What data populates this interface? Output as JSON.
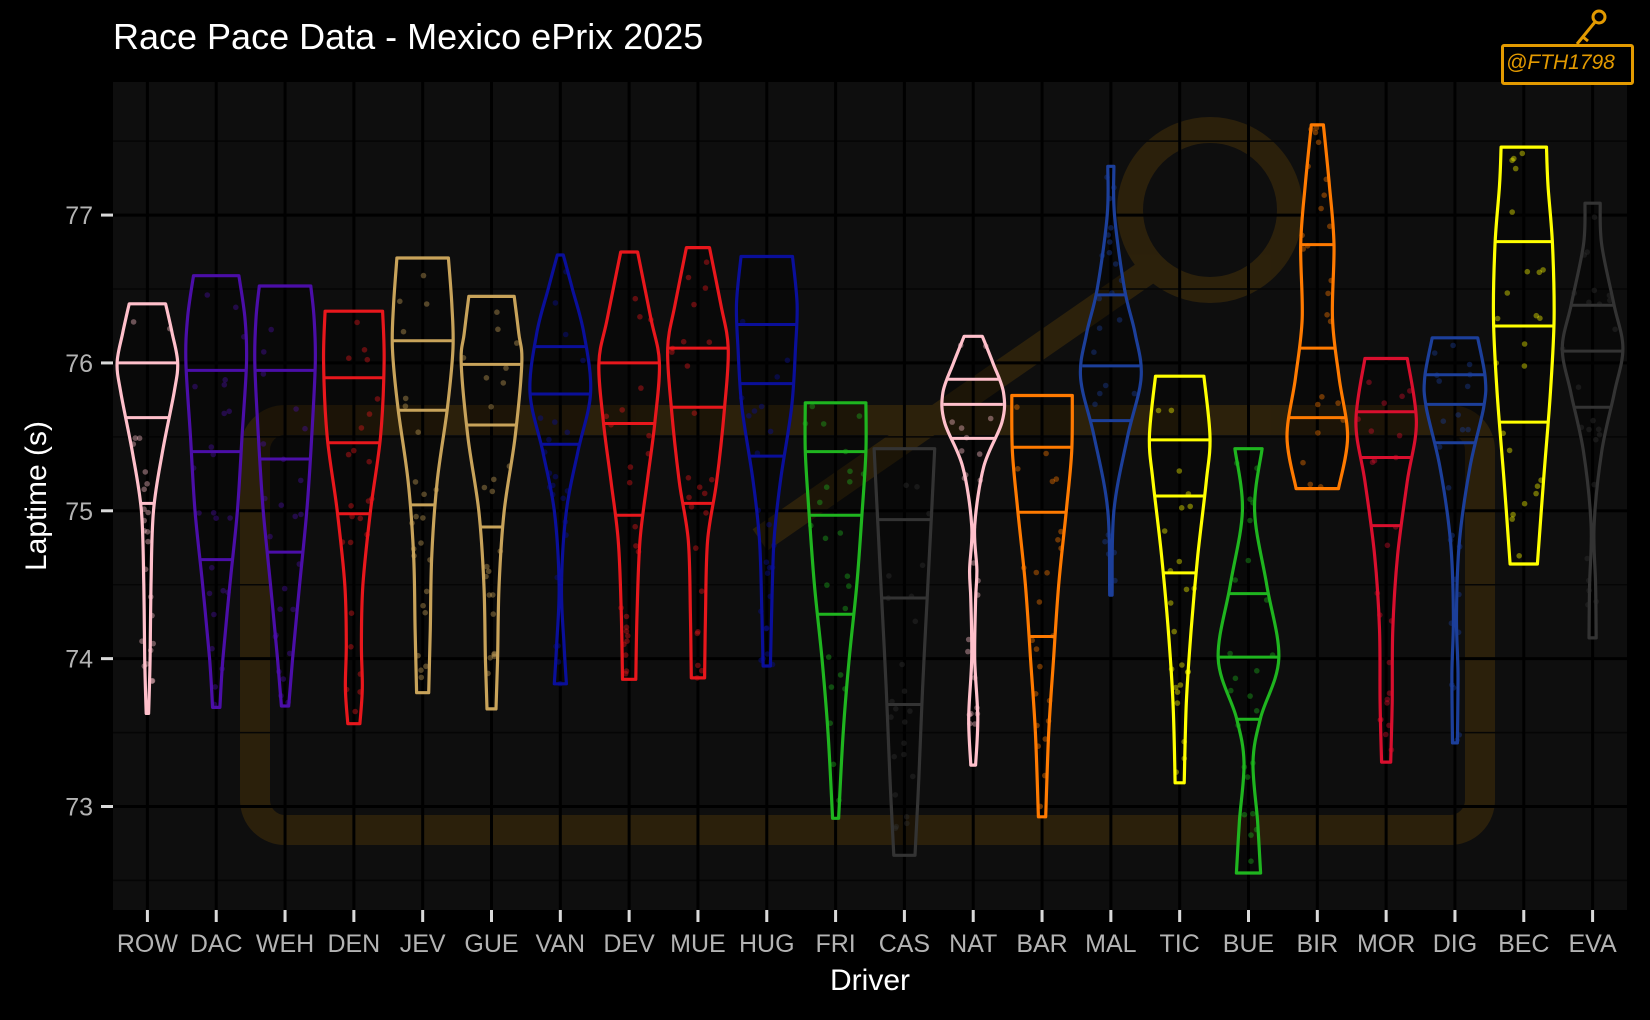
{
  "title": "Race Pace Data - Mexico ePrix 2025",
  "watermark": "@FTH1798",
  "chart_data": {
    "type": "violin",
    "title": "Race Pace Data - Mexico ePrix 2025",
    "xlabel": "Driver",
    "ylabel": "Laptime (s)",
    "ylim": [
      72.3,
      77.9
    ],
    "yticks": [
      73,
      74,
      75,
      76,
      77
    ],
    "grid": true,
    "legend": "none",
    "drivers": [
      {
        "name": "ROW",
        "color": "#ffc0cb",
        "min": 73.63,
        "max": 76.4,
        "q1": 75.05,
        "median": 75.63,
        "q3": 76.0,
        "shape": [
          [
            73.63,
            0.04
          ],
          [
            74.0,
            0.09
          ],
          [
            74.5,
            0.12
          ],
          [
            75.0,
            0.2
          ],
          [
            75.4,
            0.5
          ],
          [
            75.8,
            0.88
          ],
          [
            76.0,
            1.0
          ],
          [
            76.2,
            0.82
          ],
          [
            76.4,
            0.6
          ]
        ]
      },
      {
        "name": "DAC",
        "color": "#4b0ea8",
        "min": 73.67,
        "max": 76.59,
        "q1": 74.67,
        "median": 75.4,
        "q3": 75.95,
        "shape": [
          [
            73.67,
            0.12
          ],
          [
            74.0,
            0.22
          ],
          [
            74.5,
            0.45
          ],
          [
            75.0,
            0.7
          ],
          [
            75.5,
            0.85
          ],
          [
            76.0,
            1.0
          ],
          [
            76.3,
            0.95
          ],
          [
            76.59,
            0.75
          ]
        ]
      },
      {
        "name": "WEH",
        "color": "#4b0ea8",
        "min": 73.68,
        "max": 76.52,
        "q1": 74.72,
        "median": 75.35,
        "q3": 75.95,
        "shape": [
          [
            73.68,
            0.12
          ],
          [
            74.0,
            0.25
          ],
          [
            74.5,
            0.48
          ],
          [
            75.0,
            0.72
          ],
          [
            75.5,
            0.88
          ],
          [
            76.0,
            1.0
          ],
          [
            76.3,
            0.96
          ],
          [
            76.52,
            0.85
          ]
        ]
      },
      {
        "name": "DEN",
        "color": "#e8171c",
        "min": 73.56,
        "max": 76.35,
        "q1": 74.98,
        "median": 75.46,
        "q3": 75.9,
        "shape": [
          [
            73.56,
            0.2
          ],
          [
            73.8,
            0.28
          ],
          [
            74.1,
            0.25
          ],
          [
            74.5,
            0.3
          ],
          [
            75.0,
            0.55
          ],
          [
            75.5,
            0.88
          ],
          [
            76.0,
            1.0
          ],
          [
            76.35,
            0.95
          ]
        ]
      },
      {
        "name": "JEV",
        "color": "#c8a35a",
        "min": 73.77,
        "max": 76.71,
        "q1": 75.04,
        "median": 75.68,
        "q3": 76.15,
        "shape": [
          [
            73.77,
            0.2
          ],
          [
            74.2,
            0.25
          ],
          [
            74.7,
            0.3
          ],
          [
            75.2,
            0.48
          ],
          [
            75.7,
            0.82
          ],
          [
            76.1,
            1.0
          ],
          [
            76.4,
            0.96
          ],
          [
            76.71,
            0.85
          ]
        ]
      },
      {
        "name": "GUE",
        "color": "#c8a35a",
        "min": 73.66,
        "max": 76.45,
        "q1": 74.89,
        "median": 75.58,
        "q3": 75.99,
        "shape": [
          [
            73.66,
            0.15
          ],
          [
            74.0,
            0.2
          ],
          [
            74.5,
            0.25
          ],
          [
            75.0,
            0.42
          ],
          [
            75.5,
            0.78
          ],
          [
            76.0,
            1.0
          ],
          [
            76.2,
            0.9
          ],
          [
            76.45,
            0.75
          ]
        ]
      },
      {
        "name": "VAN",
        "color": "#0a0f9a",
        "min": 73.83,
        "max": 76.73,
        "q1": 75.45,
        "median": 75.79,
        "q3": 76.11,
        "shape": [
          [
            73.83,
            0.2
          ],
          [
            74.1,
            0.12
          ],
          [
            74.5,
            0.04
          ],
          [
            75.0,
            0.2
          ],
          [
            75.4,
            0.58
          ],
          [
            75.8,
            1.0
          ],
          [
            76.2,
            0.78
          ],
          [
            76.5,
            0.4
          ],
          [
            76.73,
            0.1
          ]
        ]
      },
      {
        "name": "DEV",
        "color": "#e8171c",
        "min": 73.86,
        "max": 76.75,
        "q1": 74.97,
        "median": 75.59,
        "q3": 76.0,
        "shape": [
          [
            73.86,
            0.22
          ],
          [
            74.3,
            0.26
          ],
          [
            74.8,
            0.36
          ],
          [
            75.2,
            0.6
          ],
          [
            75.6,
            0.85
          ],
          [
            76.0,
            1.0
          ],
          [
            76.3,
            0.72
          ],
          [
            76.75,
            0.28
          ]
        ]
      },
      {
        "name": "MUE",
        "color": "#e8171c",
        "min": 73.87,
        "max": 76.78,
        "q1": 75.05,
        "median": 75.7,
        "q3": 76.1,
        "shape": [
          [
            73.87,
            0.22
          ],
          [
            74.3,
            0.25
          ],
          [
            74.8,
            0.32
          ],
          [
            75.2,
            0.62
          ],
          [
            75.7,
            0.88
          ],
          [
            76.1,
            1.0
          ],
          [
            76.4,
            0.75
          ],
          [
            76.78,
            0.38
          ]
        ]
      },
      {
        "name": "HUG",
        "color": "#0a0f9a",
        "min": 73.95,
        "max": 76.72,
        "q1": 75.37,
        "median": 75.86,
        "q3": 76.26,
        "shape": [
          [
            73.95,
            0.12
          ],
          [
            74.3,
            0.16
          ],
          [
            74.8,
            0.24
          ],
          [
            75.2,
            0.45
          ],
          [
            75.7,
            0.82
          ],
          [
            76.1,
            0.95
          ],
          [
            76.4,
            1.0
          ],
          [
            76.72,
            0.85
          ]
        ]
      },
      {
        "name": "FRI",
        "color": "#1fb51f",
        "min": 72.92,
        "max": 75.73,
        "q1": 74.3,
        "median": 74.97,
        "q3": 75.4,
        "shape": [
          [
            72.92,
            0.1
          ],
          [
            73.5,
            0.25
          ],
          [
            74.0,
            0.45
          ],
          [
            74.5,
            0.7
          ],
          [
            75.0,
            0.88
          ],
          [
            75.4,
            1.0
          ],
          [
            75.73,
            1.0
          ]
        ]
      },
      {
        "name": "CAS",
        "color": "#333333",
        "min": 72.67,
        "max": 75.42,
        "q1": 73.69,
        "median": 74.41,
        "q3": 74.94,
        "shape": [
          [
            72.67,
            0.35
          ],
          [
            73.2,
            0.48
          ],
          [
            73.8,
            0.6
          ],
          [
            74.4,
            0.75
          ],
          [
            75.0,
            0.9
          ],
          [
            75.42,
            1.0
          ]
        ]
      },
      {
        "name": "NAT",
        "color": "#ffc0cb",
        "min": 73.28,
        "max": 76.18,
        "q1": 75.49,
        "median": 75.72,
        "q3": 75.89,
        "shape": [
          [
            73.28,
            0.08
          ],
          [
            73.6,
            0.15
          ],
          [
            74.0,
            0.05
          ],
          [
            74.4,
            0.08
          ],
          [
            74.6,
            0.12
          ],
          [
            74.9,
            0.05
          ],
          [
            75.3,
            0.35
          ],
          [
            75.6,
            0.95
          ],
          [
            75.8,
            1.0
          ],
          [
            76.0,
            0.65
          ],
          [
            76.18,
            0.3
          ]
        ]
      },
      {
        "name": "BAR",
        "color": "#ff7a00",
        "min": 72.93,
        "max": 75.78,
        "q1": 74.15,
        "median": 74.99,
        "q3": 75.43,
        "shape": [
          [
            72.93,
            0.12
          ],
          [
            73.5,
            0.22
          ],
          [
            74.0,
            0.38
          ],
          [
            74.5,
            0.55
          ],
          [
            75.0,
            0.8
          ],
          [
            75.4,
            0.98
          ],
          [
            75.78,
            1.0
          ]
        ]
      },
      {
        "name": "MAL",
        "color": "#1c3f9a",
        "min": 74.43,
        "max": 77.33,
        "q1": 75.61,
        "median": 75.98,
        "q3": 76.46,
        "shape": [
          [
            74.43,
            0.04
          ],
          [
            75.0,
            0.1
          ],
          [
            75.5,
            0.55
          ],
          [
            75.9,
            1.0
          ],
          [
            76.2,
            0.8
          ],
          [
            76.5,
            0.45
          ],
          [
            77.0,
            0.12
          ],
          [
            77.33,
            0.1
          ]
        ]
      },
      {
        "name": "TIC",
        "color": "#ffff00",
        "min": 73.16,
        "max": 75.91,
        "q1": 74.58,
        "median": 75.1,
        "q3": 75.48,
        "shape": [
          [
            73.16,
            0.15
          ],
          [
            73.7,
            0.22
          ],
          [
            74.2,
            0.38
          ],
          [
            74.7,
            0.6
          ],
          [
            75.2,
            0.88
          ],
          [
            75.5,
            1.0
          ],
          [
            75.91,
            0.8
          ]
        ]
      },
      {
        "name": "BUE",
        "color": "#1fb51f",
        "min": 72.55,
        "max": 75.42,
        "q1": 73.59,
        "median": 74.01,
        "q3": 74.44,
        "shape": [
          [
            72.55,
            0.4
          ],
          [
            72.9,
            0.3
          ],
          [
            73.3,
            0.15
          ],
          [
            73.6,
            0.4
          ],
          [
            74.0,
            1.0
          ],
          [
            74.5,
            0.6
          ],
          [
            75.0,
            0.2
          ],
          [
            75.42,
            0.45
          ]
        ]
      },
      {
        "name": "BIR",
        "color": "#ff7a00",
        "min": 75.15,
        "max": 77.61,
        "q1": 75.63,
        "median": 76.1,
        "q3": 76.8,
        "shape": [
          [
            75.15,
            0.7
          ],
          [
            75.5,
            1.0
          ],
          [
            75.9,
            0.72
          ],
          [
            76.3,
            0.5
          ],
          [
            76.8,
            0.55
          ],
          [
            77.2,
            0.4
          ],
          [
            77.61,
            0.2
          ]
        ]
      },
      {
        "name": "MOR",
        "color": "#d90f2e",
        "min": 73.3,
        "max": 76.03,
        "q1": 74.9,
        "median": 75.36,
        "q3": 75.67,
        "shape": [
          [
            73.3,
            0.15
          ],
          [
            73.7,
            0.2
          ],
          [
            74.2,
            0.22
          ],
          [
            74.7,
            0.38
          ],
          [
            75.2,
            0.7
          ],
          [
            75.6,
            1.0
          ],
          [
            76.03,
            0.7
          ]
        ]
      },
      {
        "name": "DIG",
        "color": "#1c3f9a",
        "min": 73.43,
        "max": 76.17,
        "q1": 75.46,
        "median": 75.72,
        "q3": 75.92,
        "shape": [
          [
            73.43,
            0.08
          ],
          [
            73.9,
            0.1
          ],
          [
            74.3,
            0.05
          ],
          [
            74.8,
            0.15
          ],
          [
            75.3,
            0.5
          ],
          [
            75.7,
            0.95
          ],
          [
            75.9,
            1.0
          ],
          [
            76.17,
            0.75
          ]
        ]
      },
      {
        "name": "BEC",
        "color": "#ffff00",
        "min": 74.64,
        "max": 77.46,
        "q1": 75.6,
        "median": 76.25,
        "q3": 76.82,
        "shape": [
          [
            74.64,
            0.45
          ],
          [
            75.2,
            0.65
          ],
          [
            75.8,
            0.88
          ],
          [
            76.3,
            1.0
          ],
          [
            76.8,
            0.95
          ],
          [
            77.2,
            0.8
          ],
          [
            77.46,
            0.75
          ]
        ]
      },
      {
        "name": "EVA",
        "color": "#333333",
        "min": 74.14,
        "max": 77.08,
        "q1": 75.7,
        "median": 76.08,
        "q3": 76.39,
        "shape": [
          [
            74.14,
            0.12
          ],
          [
            74.5,
            0.1
          ],
          [
            74.9,
            0.05
          ],
          [
            75.4,
            0.3
          ],
          [
            75.8,
            0.72
          ],
          [
            76.1,
            1.0
          ],
          [
            76.4,
            0.7
          ],
          [
            76.8,
            0.3
          ],
          [
            77.08,
            0.25
          ]
        ]
      }
    ]
  }
}
